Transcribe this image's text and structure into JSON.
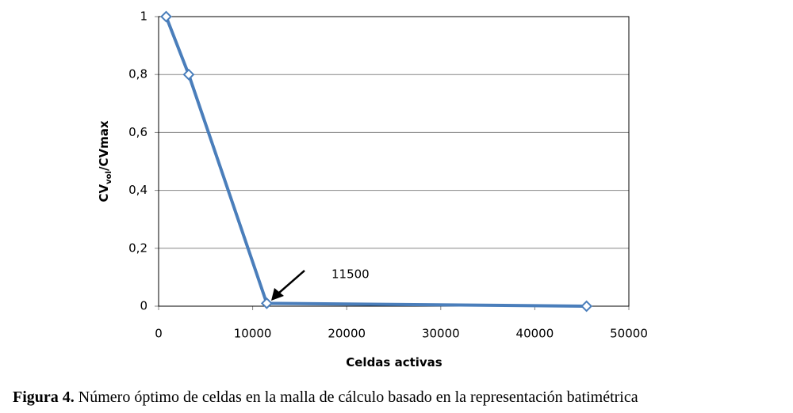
{
  "chart_data": {
    "type": "line",
    "x": [
      800,
      3200,
      11500,
      45500
    ],
    "series": [
      {
        "name": "CVvol/CVmax",
        "color": "#4a7ebb",
        "values": [
          1,
          0.8,
          0.01,
          0
        ]
      }
    ],
    "xlim": [
      0,
      50000
    ],
    "xticks": [
      0,
      10000,
      20000,
      30000,
      40000,
      50000
    ],
    "ylim": [
      0,
      1
    ],
    "yticks": [
      0,
      {
        "value": 0.2,
        "label": "0,2"
      },
      {
        "value": 0.4,
        "label": "0,4"
      },
      {
        "value": 0.6,
        "label": "0,6"
      },
      {
        "value": 0.8,
        "label": "0,8"
      },
      1
    ],
    "xlabel": "Celdas activas",
    "ylabel": [
      "CV",
      "vol",
      "/CVmax"
    ],
    "annotation": "11500",
    "grid": true
  },
  "caption": {
    "label": "Figura 4.",
    "text": " Número óptimo de celdas en la malla de cálculo basado en la representación batimétrica"
  }
}
